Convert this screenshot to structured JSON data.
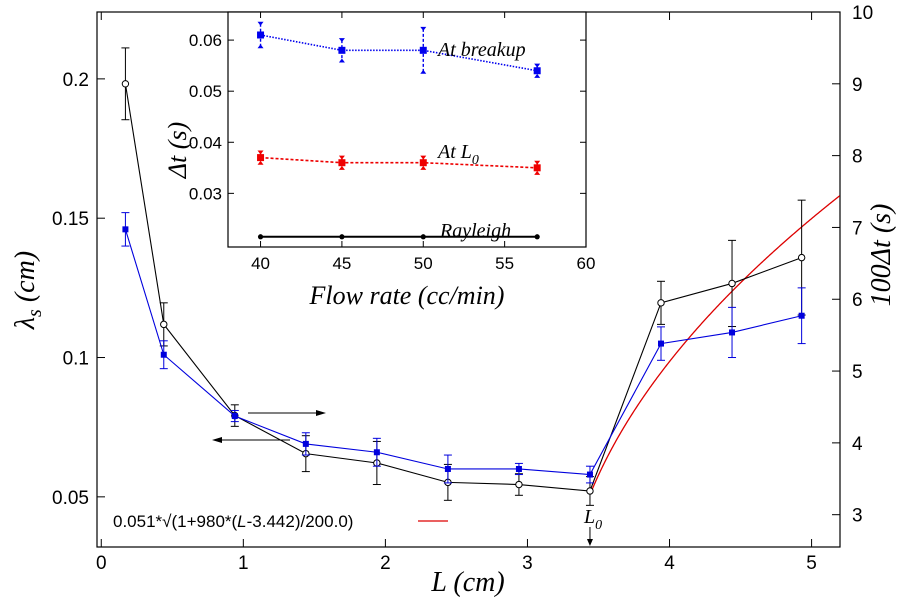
{
  "chart_data": [
    {
      "type": "line",
      "xlabel": "L (cm)",
      "ylabel_left": "λs (cm)",
      "ylabel_right": "100Δt (s)",
      "x_ticks": [
        "0",
        "1",
        "2",
        "3",
        "4",
        "5"
      ],
      "y_left_ticks": [
        "0.05",
        "0.1",
        "0.15",
        "0.2"
      ],
      "y_right_ticks": [
        "3",
        "4",
        "5",
        "6",
        "7",
        "8",
        "9",
        "10"
      ],
      "xlim": [
        -0.03,
        5.2
      ],
      "y_left_lim": [
        0.032,
        0.224
      ],
      "y_right_lim": [
        2.55,
        10
      ],
      "series": [
        {
          "axis": "left",
          "color": "#0000dd",
          "marker": "square",
          "x": [
            0.17,
            0.44,
            0.94,
            1.44,
            1.94,
            2.44,
            2.94,
            3.44,
            3.94,
            4.44,
            4.93
          ],
          "y": [
            0.146,
            0.101,
            0.079,
            0.069,
            0.066,
            0.06,
            0.06,
            0.058,
            0.105,
            0.109,
            0.115
          ],
          "err": [
            0.006,
            0.005,
            0.002,
            0.004,
            0.005,
            0.005,
            0.002,
            0.003,
            0.006,
            0.009,
            0.01
          ]
        },
        {
          "axis": "right",
          "color": "#000000",
          "marker": "circle",
          "x": [
            0.17,
            0.44,
            0.94,
            1.44,
            1.94,
            2.44,
            2.94,
            3.44,
            3.94,
            4.44,
            4.93
          ],
          "y": [
            9.0,
            5.65,
            4.38,
            3.85,
            3.72,
            3.45,
            3.42,
            3.33,
            5.95,
            6.22,
            6.58
          ],
          "err": [
            0.5,
            0.3,
            0.15,
            0.25,
            0.3,
            0.25,
            0.15,
            0.2,
            0.3,
            0.6,
            0.8
          ]
        },
        {
          "axis": "left",
          "color": "#dd0000",
          "type": "fit_curve",
          "legend": "0.051*√(1+980*(L-3.442)/200.0)",
          "params": {
            "a": 0.051,
            "b": 980,
            "x0": 3.442,
            "c": 200.0
          }
        }
      ],
      "annotations": [
        {
          "text": "L0",
          "x": 3.44,
          "y": 0.04,
          "arrow": "down"
        }
      ],
      "axis_arrows": [
        {
          "direction": "right",
          "target_axis": "right"
        },
        {
          "direction": "left",
          "target_axis": "left"
        }
      ]
    },
    {
      "type": "line",
      "inset": true,
      "xlabel": "Flow rate (cc/min)",
      "ylabel": "Δt (s)",
      "x_ticks": [
        "40",
        "45",
        "50",
        "55",
        "60"
      ],
      "y_ticks": [
        "0.03",
        "0.04",
        "0.05",
        "0.06"
      ],
      "xlim": [
        38,
        60
      ],
      "ylim": [
        0.0195,
        0.0655
      ],
      "series": [
        {
          "name": "At breakup",
          "color": "#0000ee",
          "marker": "square",
          "x": [
            40,
            45,
            50,
            57
          ],
          "y": [
            0.061,
            0.058,
            0.058,
            0.054
          ],
          "err": [
            0.0022,
            0.002,
            0.0042,
            0.001
          ]
        },
        {
          "name": "At L0",
          "color": "#ee0000",
          "marker": "square",
          "x": [
            40,
            45,
            50,
            57
          ],
          "y": [
            0.037,
            0.036,
            0.036,
            0.035
          ],
          "err": [
            0.001,
            0.001,
            0.001,
            0.001
          ]
        },
        {
          "name": "Rayleigh",
          "color": "#000000",
          "marker": "circle",
          "x": [
            40,
            45,
            50,
            57
          ],
          "y": [
            0.0215,
            0.0215,
            0.0215,
            0.0215
          ],
          "err": [
            0,
            0,
            0,
            0
          ]
        }
      ]
    }
  ]
}
